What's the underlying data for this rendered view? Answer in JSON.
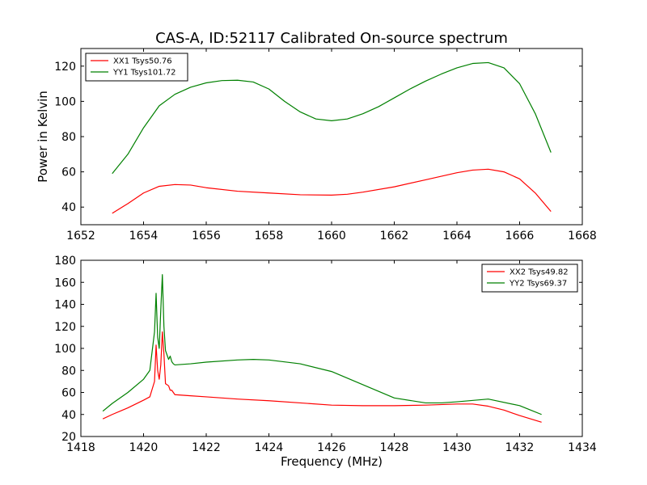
{
  "title": "CAS-A, ID:52117 Calibrated On-source spectrum",
  "chart_data": [
    {
      "type": "line",
      "title": "CAS-A, ID:52117 Calibrated On-source spectrum",
      "xlabel": "",
      "ylabel": "Power in Kelvin",
      "xlim": [
        1652,
        1668
      ],
      "ylim": [
        30,
        130
      ],
      "xticks": [
        "1652",
        "1654",
        "1656",
        "1658",
        "1660",
        "1662",
        "1664",
        "1666",
        "1668"
      ],
      "yticks": [
        "40",
        "60",
        "80",
        "100",
        "120"
      ],
      "grid": false,
      "legend_position": "top-left",
      "series": [
        {
          "name": "XX1 Tsys50.76",
          "color": "#ff0000",
          "x": [
            1653.0,
            1653.5,
            1654.0,
            1654.5,
            1655.0,
            1655.5,
            1656.0,
            1657.0,
            1658.0,
            1659.0,
            1660.0,
            1660.5,
            1661.0,
            1662.0,
            1663.0,
            1664.0,
            1664.5,
            1665.0,
            1665.5,
            1666.0,
            1666.5,
            1667.0
          ],
          "y": [
            36.5,
            42,
            48,
            51.8,
            52.8,
            52.5,
            51,
            49,
            48,
            47,
            46.8,
            47.3,
            48.5,
            51.5,
            55.5,
            59.5,
            61,
            61.5,
            60,
            56,
            48,
            37.5
          ]
        },
        {
          "name": "YY1 Tsys101.72",
          "color": "#008000",
          "x": [
            1653.0,
            1653.5,
            1654.0,
            1654.5,
            1655.0,
            1655.5,
            1656.0,
            1656.5,
            1657.0,
            1657.5,
            1658.0,
            1658.5,
            1659.0,
            1659.5,
            1660.0,
            1660.5,
            1661.0,
            1661.5,
            1662.0,
            1662.5,
            1663.0,
            1663.5,
            1664.0,
            1664.5,
            1665.0,
            1665.5,
            1666.0,
            1666.5,
            1667.0
          ],
          "y": [
            59,
            70,
            85,
            97.5,
            104,
            108,
            110.5,
            111.8,
            112,
            111,
            107,
            100,
            94,
            90,
            89,
            90,
            93,
            97,
            102,
            107,
            111.5,
            115.5,
            119,
            121.5,
            122,
            119,
            110,
            93,
            71
          ]
        }
      ]
    },
    {
      "type": "line",
      "title": "",
      "xlabel": "Frequency (MHz)",
      "ylabel": "",
      "xlim": [
        1418,
        1434
      ],
      "ylim": [
        20,
        180
      ],
      "xticks": [
        "1418",
        "1420",
        "1422",
        "1424",
        "1426",
        "1428",
        "1430",
        "1432",
        "1434"
      ],
      "yticks": [
        "20",
        "40",
        "60",
        "80",
        "100",
        "120",
        "140",
        "160",
        "180"
      ],
      "grid": false,
      "legend_position": "top-right",
      "series": [
        {
          "name": "XX2 Tsys49.82",
          "color": "#ff0000",
          "x": [
            1418.7,
            1419.0,
            1419.5,
            1420.0,
            1420.2,
            1420.35,
            1420.4,
            1420.45,
            1420.5,
            1420.55,
            1420.6,
            1420.65,
            1420.7,
            1420.8,
            1420.85,
            1420.9,
            1420.95,
            1421.0,
            1421.5,
            1422.0,
            1423.0,
            1424.0,
            1425.0,
            1426.0,
            1427.0,
            1428.0,
            1429.0,
            1430.0,
            1430.5,
            1431.0,
            1431.5,
            1432.0,
            1432.7
          ],
          "y": [
            36,
            40,
            46,
            53,
            56,
            70,
            103,
            80,
            72,
            85,
            115,
            95,
            68,
            66,
            62,
            62,
            60,
            58,
            57,
            56,
            54,
            52.5,
            50.5,
            48.5,
            48,
            48,
            48.5,
            49.5,
            49.5,
            47.5,
            44,
            39,
            33
          ]
        },
        {
          "name": "YY2 Tsys69.37",
          "color": "#008000",
          "x": [
            1418.7,
            1419.0,
            1419.5,
            1420.0,
            1420.2,
            1420.35,
            1420.4,
            1420.45,
            1420.5,
            1420.55,
            1420.6,
            1420.65,
            1420.7,
            1420.8,
            1420.85,
            1420.9,
            1420.95,
            1421.0,
            1421.5,
            1422.0,
            1423.0,
            1423.5,
            1424.0,
            1425.0,
            1426.0,
            1427.0,
            1428.0,
            1429.0,
            1429.5,
            1430.0,
            1431.0,
            1432.0,
            1432.7
          ],
          "y": [
            43,
            50,
            60,
            72,
            80,
            115,
            150,
            110,
            100,
            135,
            167,
            120,
            98,
            90,
            93,
            88,
            86,
            85,
            86,
            87.5,
            89.5,
            90,
            89.5,
            86,
            79,
            67,
            55,
            50.5,
            50.5,
            51.5,
            54,
            48,
            40
          ]
        }
      ]
    }
  ]
}
